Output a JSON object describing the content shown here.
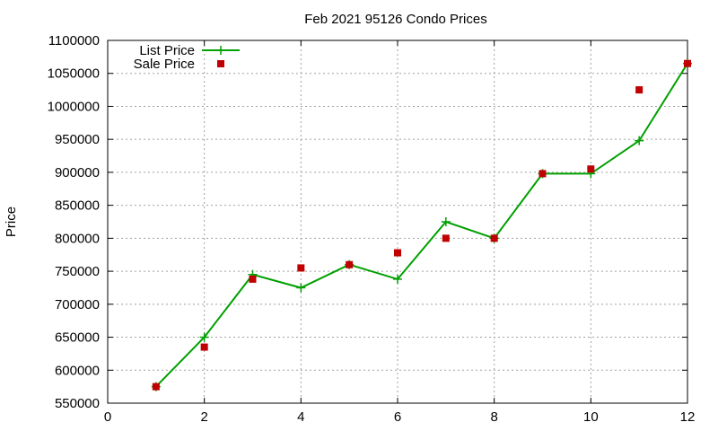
{
  "chart_data": {
    "type": "line",
    "title": "Feb 2021 95126 Condo Prices",
    "xlabel": "",
    "ylabel": "Price",
    "xlim": [
      0,
      12
    ],
    "ylim": [
      550000,
      1100000
    ],
    "xticks": [
      0,
      2,
      4,
      6,
      8,
      10,
      12
    ],
    "yticks": [
      550000,
      600000,
      650000,
      700000,
      750000,
      800000,
      850000,
      900000,
      950000,
      1000000,
      1050000,
      1100000
    ],
    "grid": true,
    "legend_position": "top-left",
    "series": [
      {
        "name": "List Price",
        "style": "line-with-plus-markers",
        "color": "#00a000",
        "x": [
          1,
          2,
          3,
          4,
          5,
          6,
          7,
          8,
          9,
          10,
          11,
          12
        ],
        "y": [
          575000,
          650000,
          745000,
          725000,
          760000,
          738000,
          825000,
          800000,
          898000,
          898000,
          948000,
          1065000
        ]
      },
      {
        "name": "Sale Price",
        "style": "square-markers",
        "color": "#c00000",
        "x": [
          1,
          2,
          3,
          4,
          5,
          6,
          7,
          8,
          9,
          10,
          11,
          12
        ],
        "y": [
          575000,
          635000,
          738000,
          755000,
          760000,
          778000,
          800000,
          800000,
          898000,
          905000,
          1025000,
          1065000
        ]
      }
    ]
  }
}
